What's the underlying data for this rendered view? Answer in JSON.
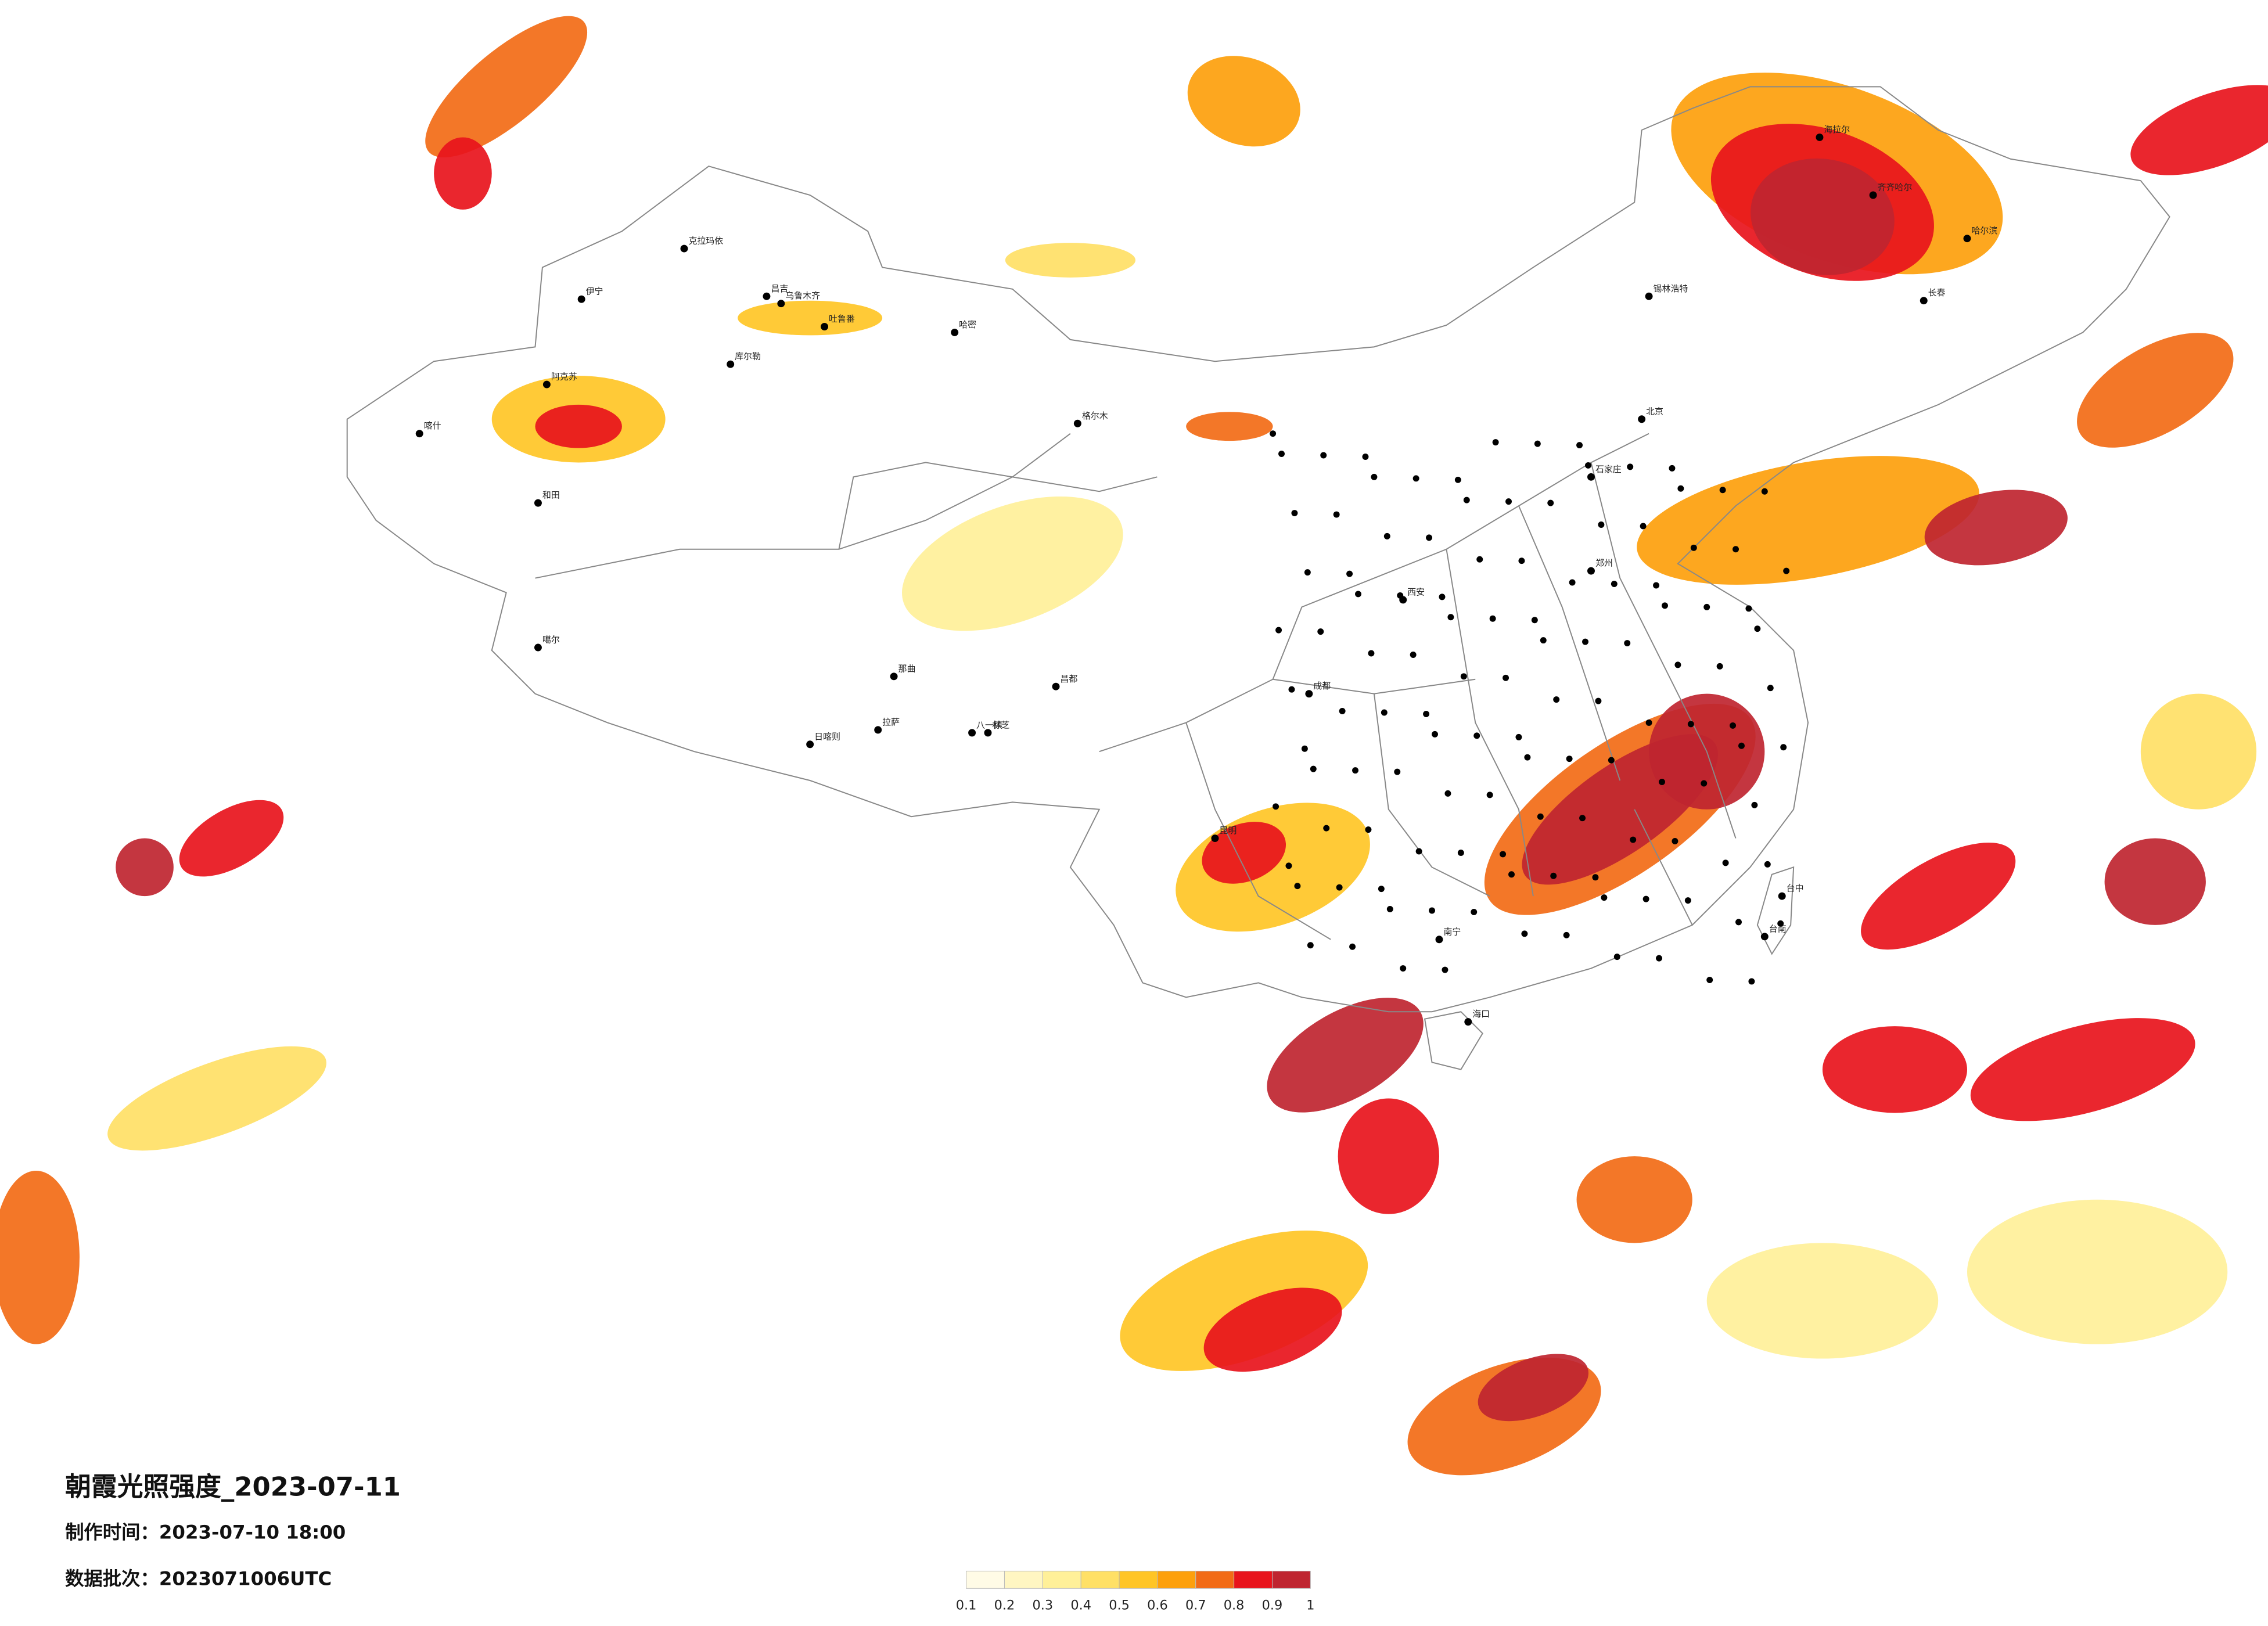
{
  "map": {
    "title": "朝霞光照强度_2023-07-11",
    "made_at": "制作时间：2023-07-10 18:00",
    "batch": "数据批次：2023071006UTC",
    "colorbar": {
      "ticks": [
        0.1,
        0.2,
        0.3,
        0.4,
        0.5,
        0.6,
        0.7,
        0.8,
        0.9,
        1
      ],
      "colors": [
        "#fffbe6",
        "#fff6c2",
        "#fff099",
        "#ffe066",
        "#ffc526",
        "#fda00c",
        "#f26b16",
        "#e8141c",
        "#bf2530"
      ]
    },
    "cities": [
      "克拉玛依",
      "伊宁",
      "昌吉",
      "乌鲁木齐",
      "吐鲁番",
      "哈密",
      "库尔勒",
      "阿克苏",
      "喀什",
      "和田",
      "噶尔",
      "日喀则",
      "拉萨",
      "那曲",
      "八一镇",
      "林芝",
      "昌都",
      "格尔木",
      "海拉尔",
      "齐齐哈尔",
      "哈尔滨",
      "长春",
      "锡林浩特",
      "北京",
      "石家庄",
      "郑州",
      "西安",
      "成都",
      "昆明",
      "南宁",
      "海口",
      "台中",
      "台南"
    ]
  }
}
